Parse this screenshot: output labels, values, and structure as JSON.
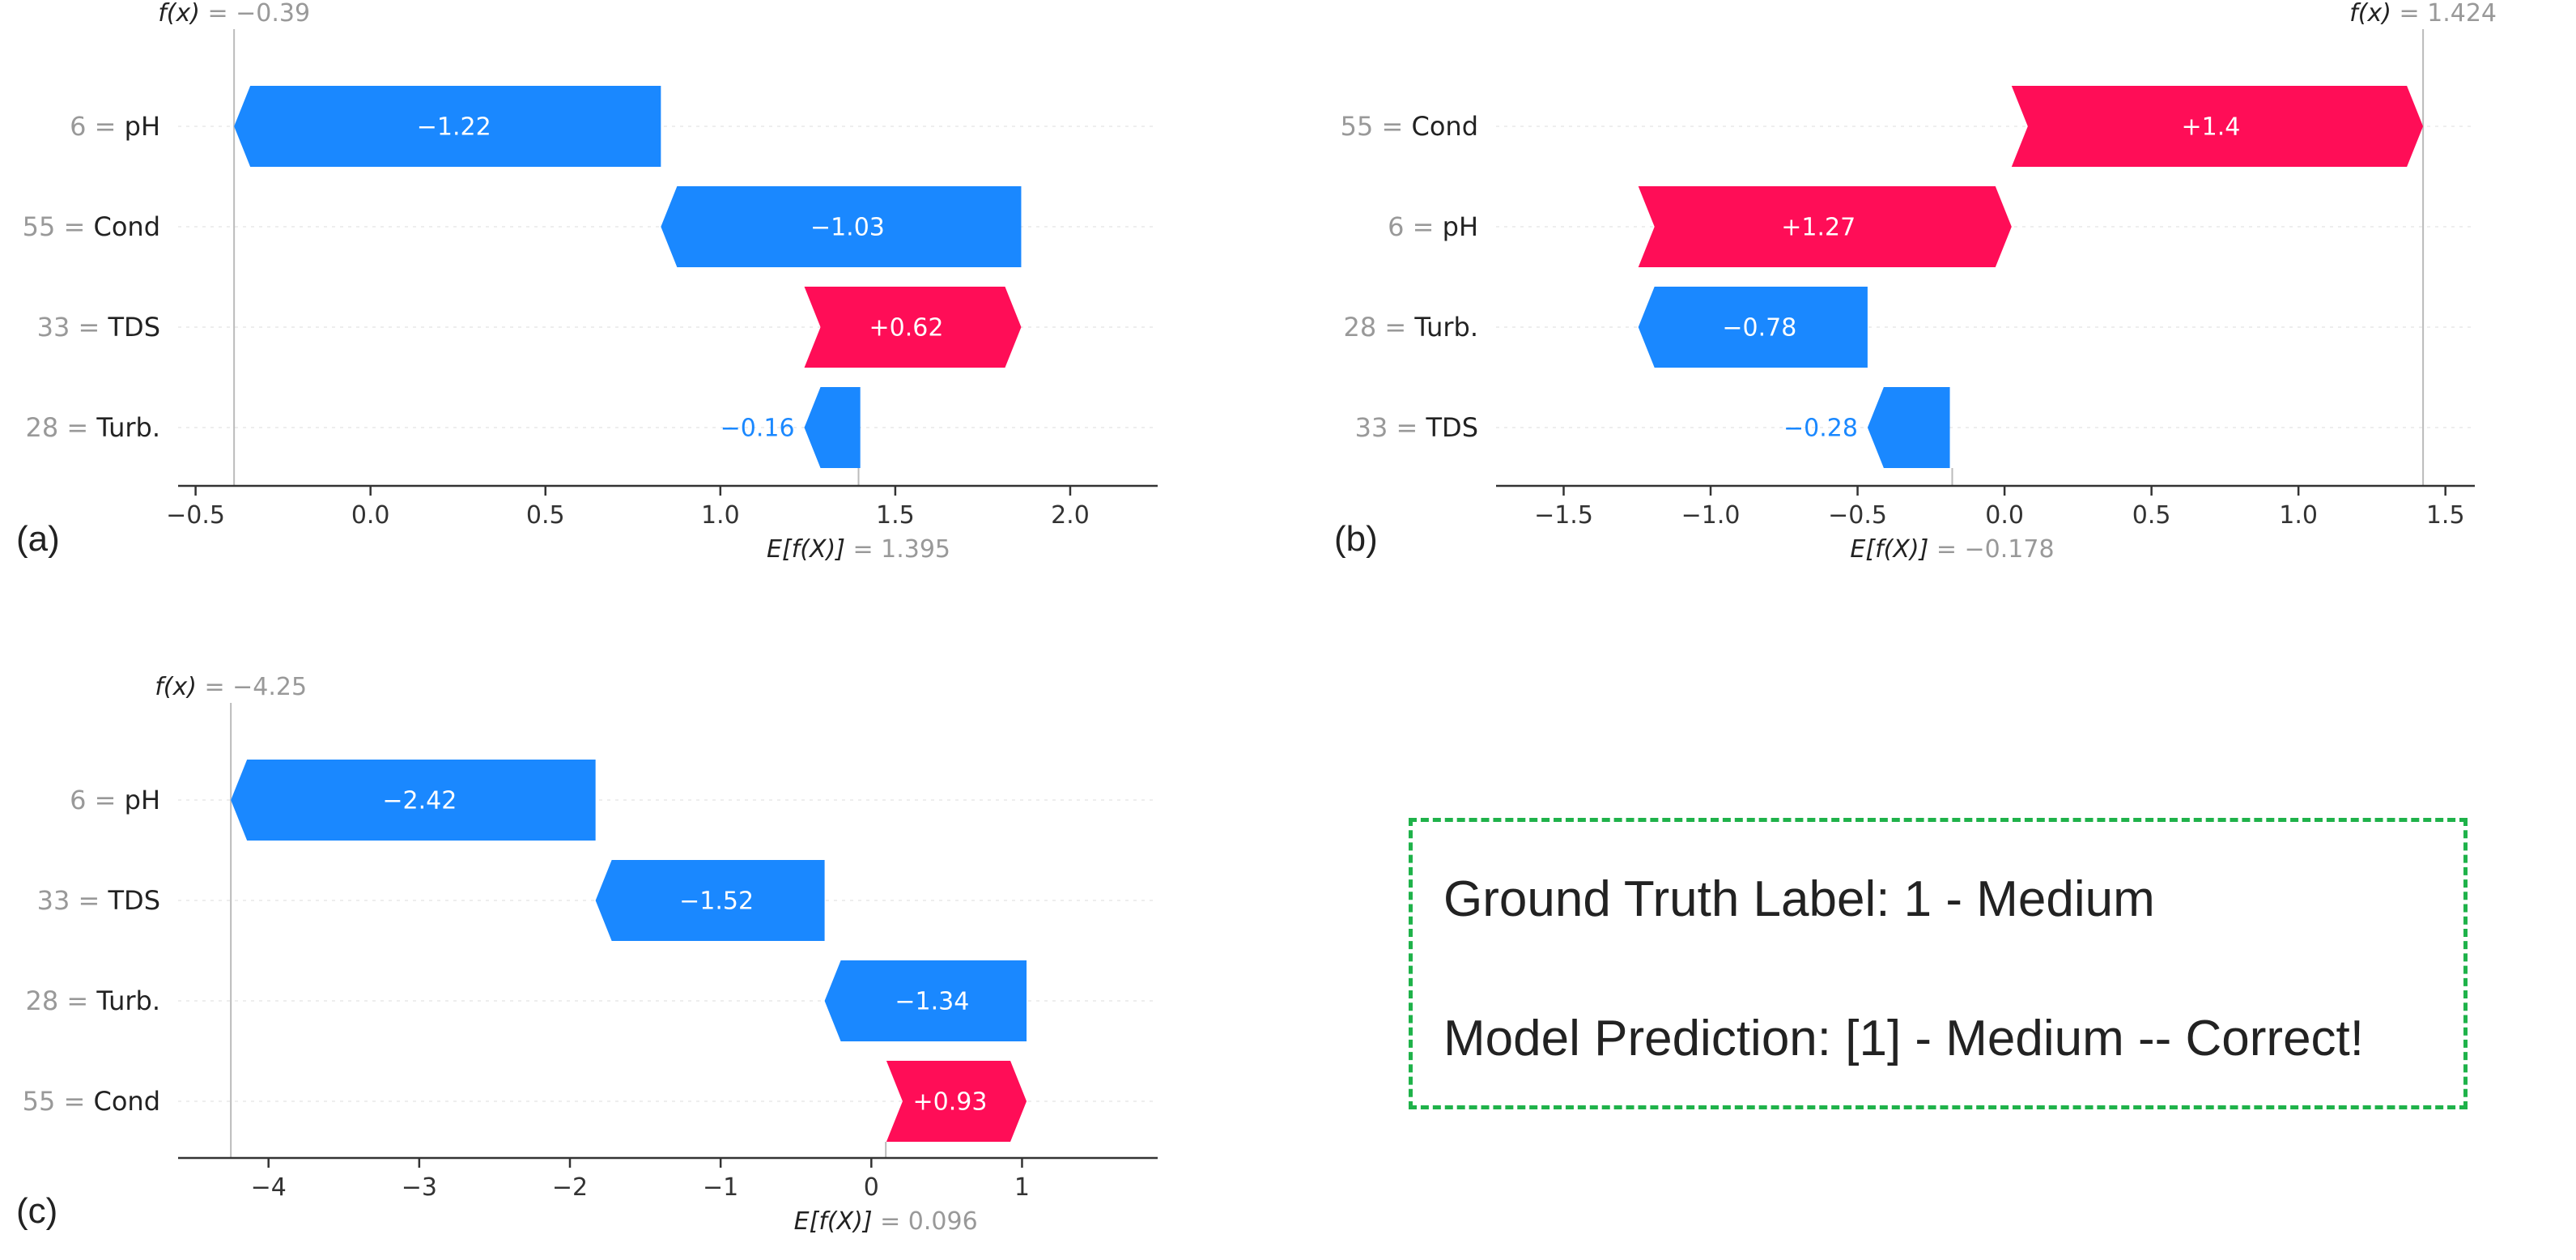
{
  "colors": {
    "negative": "#1a88ff",
    "positive": "#ff0d57",
    "axis": "#333333",
    "muted": "#999999",
    "dashed_box": "#1fb24a"
  },
  "chart_data": [
    {
      "type": "waterfall",
      "panel_label": "(a)",
      "fx_label": "f(x)",
      "fx_value_text": "−0.39",
      "fx": -0.39,
      "ev_label": "E[f(X)]",
      "ev_value_text": "1.395",
      "ev": 1.395,
      "xlim": [
        -0.55,
        2.25
      ],
      "ticks": [
        -0.5,
        0.0,
        0.5,
        1.0,
        1.5,
        2.0
      ],
      "tick_labels": [
        "−0.5",
        "0.0",
        "0.5",
        "1.0",
        "1.5",
        "2.0"
      ],
      "features": [
        {
          "label": "6 = pH",
          "value": -1.22,
          "text": "−1.22"
        },
        {
          "label": "55 = Cond",
          "value": -1.03,
          "text": "−1.03"
        },
        {
          "label": "33 = TDS",
          "value": 0.62,
          "text": "+0.62"
        },
        {
          "label": "28 = Turb.",
          "value": -0.16,
          "text": "−0.16"
        }
      ]
    },
    {
      "type": "waterfall",
      "panel_label": "(b)",
      "fx_label": "f(x)",
      "fx_value_text": "1.424",
      "fx": 1.424,
      "ev_label": "E[f(X)]",
      "ev_value_text": "−0.178",
      "ev": -0.178,
      "xlim": [
        -1.73,
        1.6
      ],
      "ticks": [
        -1.5,
        -1.0,
        -0.5,
        0.0,
        0.5,
        1.0,
        1.5
      ],
      "tick_labels": [
        "−1.5",
        "−1.0",
        "−0.5",
        "0.0",
        "0.5",
        "1.0",
        "1.5"
      ],
      "features": [
        {
          "label": "55 = Cond",
          "value": 1.4,
          "text": "+1.4"
        },
        {
          "label": "6 = pH",
          "value": 1.27,
          "text": "+1.27"
        },
        {
          "label": "28 = Turb.",
          "value": -0.78,
          "text": "−0.78"
        },
        {
          "label": "33 = TDS",
          "value": -0.28,
          "text": "−0.28"
        }
      ]
    },
    {
      "type": "waterfall",
      "panel_label": "(c)",
      "fx_label": "f(x)",
      "fx_value_text": "−4.25",
      "fx": -4.25,
      "ev_label": "E[f(X)]",
      "ev_value_text": "0.096",
      "ev": 0.096,
      "xlim": [
        -4.6,
        1.9
      ],
      "ticks": [
        -4,
        -3,
        -2,
        -1,
        0,
        1
      ],
      "tick_labels": [
        "−4",
        "−3",
        "−2",
        "−1",
        "0",
        "1"
      ],
      "features": [
        {
          "label": "6 = pH",
          "value": -2.42,
          "text": "−2.42"
        },
        {
          "label": "33 = TDS",
          "value": -1.52,
          "text": "−1.52"
        },
        {
          "label": "28 = Turb.",
          "value": -1.34,
          "text": "−1.34"
        },
        {
          "label": "55 = Cond",
          "value": 0.93,
          "text": "+0.93"
        }
      ]
    }
  ],
  "annotation": {
    "ground_truth": "Ground Truth Label: 1 - Medium",
    "prediction": "Model Prediction: [1] - Medium -- Correct!"
  }
}
